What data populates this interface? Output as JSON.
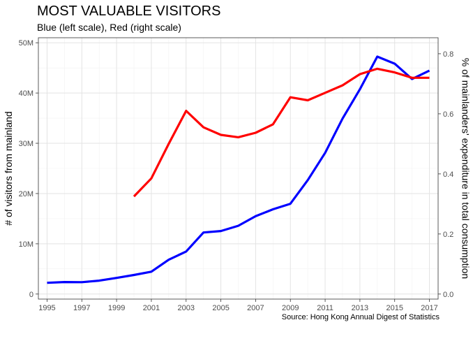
{
  "chart_data": {
    "type": "line",
    "title": "MOST VALUABLE VISITORS",
    "subtitle": "Blue (left scale), Red (right scale)",
    "caption": "Source: Hong Kong Annual Digest of Statistics",
    "ylabel": "# of visitors from mainland",
    "y2label": "% of mainlanders' expenditure in total consumption",
    "xlim": [
      1994.5,
      2017.5
    ],
    "ylim": [
      -1000000,
      51000000
    ],
    "y2lim": [
      -0.0167,
      0.8533
    ],
    "x_ticks": [
      1995,
      1997,
      1999,
      2001,
      2003,
      2005,
      2007,
      2009,
      2011,
      2013,
      2015,
      2017
    ],
    "x_tick_labels": [
      "1995",
      "1997",
      "1999",
      "2001",
      "2003",
      "2005",
      "2007",
      "2009",
      "2011",
      "2013",
      "2015",
      "2017"
    ],
    "y_ticks": [
      0,
      10000000,
      20000000,
      30000000,
      40000000,
      50000000
    ],
    "y_tick_labels": [
      "0",
      "10M",
      "20M",
      "30M",
      "40M",
      "50M"
    ],
    "y2_ticks": [
      0,
      0.2,
      0.4,
      0.6,
      0.8
    ],
    "y2_tick_labels": [
      "0.0",
      "0.2",
      "0.4",
      "0.6",
      "0.8"
    ],
    "grid": true,
    "series": [
      {
        "axis": "left",
        "color": "#0000ff",
        "x": [
          1995,
          1996,
          1997,
          1998,
          1999,
          2000,
          2001,
          2002,
          2003,
          2004,
          2005,
          2006,
          2007,
          2008,
          2009,
          2010,
          2011,
          2012,
          2013,
          2014,
          2015,
          2016,
          2017
        ],
        "values": [
          2240000,
          2390000,
          2360000,
          2670000,
          3210000,
          3790000,
          4450000,
          6830000,
          8470000,
          12250000,
          12540000,
          13590000,
          15490000,
          16860000,
          17960000,
          22680000,
          28100000,
          34910000,
          40750000,
          47250000,
          45840000,
          42780000,
          44450000
        ]
      },
      {
        "axis": "right",
        "color": "#ff0000",
        "x": [
          2000,
          2001,
          2002,
          2003,
          2004,
          2005,
          2006,
          2007,
          2008,
          2009,
          2010,
          2011,
          2012,
          2013,
          2014,
          2015,
          2016,
          2017
        ],
        "values": [
          0.325,
          0.385,
          0.5,
          0.61,
          0.555,
          0.53,
          0.522,
          0.537,
          0.565,
          0.655,
          0.645,
          0.67,
          0.695,
          0.732,
          0.75,
          0.738,
          0.72,
          0.72
        ]
      }
    ]
  }
}
